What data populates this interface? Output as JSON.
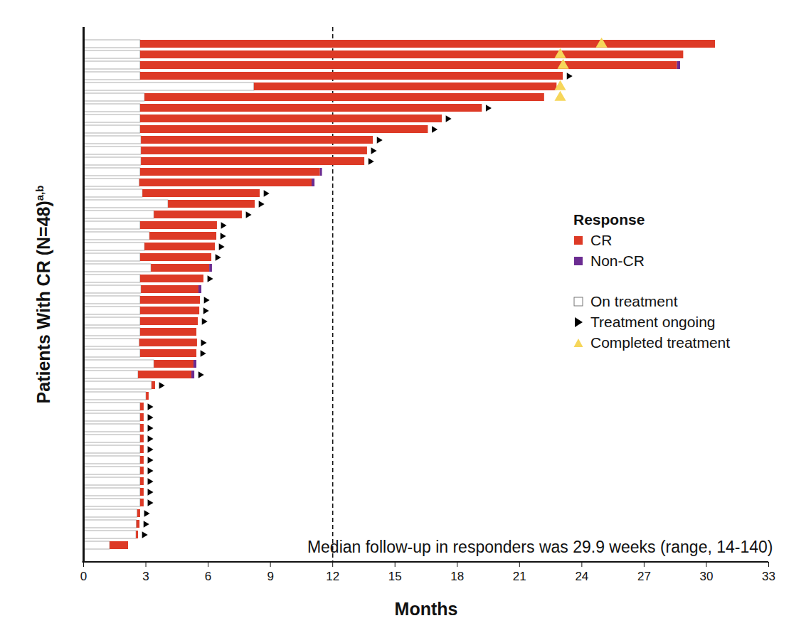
{
  "chart_data": {
    "type": "bar",
    "orientation": "horizontal",
    "stacked": true,
    "ylabel": "Patients With CR (N=48)",
    "ylabel_superscript": "a,b",
    "xlabel": "Months",
    "annotation": "Median follow-up in responders was 29.9 weeks (range, 14-140)",
    "categories": [
      null,
      null,
      null,
      null,
      null,
      null,
      null,
      null,
      null,
      null,
      null,
      null,
      null,
      null,
      null,
      null,
      null,
      null,
      null,
      null,
      null,
      null,
      null,
      null,
      null,
      null,
      null,
      null,
      null,
      null,
      null,
      null,
      null,
      null,
      null,
      null,
      null,
      null,
      null,
      null,
      null,
      null,
      null,
      null,
      null,
      null,
      null,
      null
    ],
    "xlim": [
      0,
      33
    ],
    "xticks": [
      0,
      3,
      6,
      9,
      12,
      15,
      18,
      21,
      24,
      27,
      30,
      33
    ],
    "reference_x": 12,
    "tick_labels": "x",
    "legend": "right",
    "legend_title": "Response",
    "legend_groups": [
      [
        "CR",
        "Non-CR"
      ],
      [
        "On treatment",
        "Treatment ongoing",
        "Completed treatment"
      ]
    ],
    "series": [
      {
        "name": "On treatment",
        "type": "bar",
        "color": "#ffffff",
        "values": [
          2.74,
          2.74,
          2.74,
          2.74,
          8.22,
          2.95,
          2.74,
          2.74,
          2.74,
          2.78,
          2.78,
          2.78,
          2.74,
          2.7,
          2.85,
          4.08,
          3.4,
          2.74,
          3.19,
          2.95,
          2.74,
          3.26,
          2.74,
          2.78,
          2.74,
          2.74,
          2.74,
          2.74,
          2.7,
          2.74,
          3.4,
          2.64,
          3.29,
          3.02,
          2.74,
          2.74,
          2.74,
          2.74,
          2.74,
          2.74,
          2.74,
          2.74,
          2.74,
          2.74,
          2.6,
          2.56,
          2.54,
          1.27
        ]
      },
      {
        "name": "CR",
        "type": "bar",
        "color": "#dd3a26",
        "values": [
          27.69,
          26.16,
          25.86,
          20.36,
          14.58,
          19.25,
          16.46,
          14.53,
          13.86,
          11.17,
          10.89,
          10.76,
          8.66,
          8.3,
          5.65,
          4.18,
          4.24,
          3.7,
          3.22,
          3.39,
          3.43,
          2.81,
          3.05,
          2.77,
          2.88,
          2.85,
          2.78,
          2.71,
          2.78,
          2.71,
          1.91,
          2.57,
          0.17,
          0.13,
          0.17,
          0.17,
          0.17,
          0.17,
          0.17,
          0.17,
          0.17,
          0.17,
          0.17,
          0.17,
          0.14,
          0.15,
          0.1,
          0.89
        ]
      },
      {
        "name": "Non-CR",
        "type": "bar",
        "color": "#6b2c91",
        "values": [
          null,
          null,
          0.15,
          null,
          null,
          null,
          null,
          null,
          null,
          null,
          null,
          null,
          0.1,
          0.14,
          null,
          null,
          null,
          null,
          null,
          null,
          null,
          0.13,
          null,
          0.14,
          null,
          null,
          null,
          null,
          null,
          null,
          0.14,
          0.14,
          null,
          null,
          null,
          null,
          null,
          null,
          null,
          null,
          null,
          null,
          null,
          null,
          null,
          null,
          null,
          null
        ]
      },
      {
        "name": "Treatment ongoing",
        "type": "scatter",
        "marker": "triangle-right",
        "color": "#000000",
        "values": [
          null,
          null,
          null,
          23.4,
          null,
          null,
          19.5,
          17.57,
          16.9,
          14.25,
          13.97,
          13.84,
          null,
          null,
          8.8,
          8.56,
          7.94,
          6.74,
          6.71,
          6.64,
          6.47,
          null,
          6.09,
          null,
          5.92,
          5.89,
          5.82,
          null,
          5.78,
          5.75,
          null,
          5.65,
          3.76,
          null,
          3.21,
          3.21,
          3.21,
          3.21,
          3.21,
          3.21,
          3.21,
          3.21,
          3.21,
          3.21,
          3.04,
          3.01,
          2.94,
          null
        ]
      },
      {
        "name": "Completed treatment",
        "type": "scatter",
        "marker": "triangle",
        "color": "#f6d65a",
        "values": [
          24.95,
          22.96,
          23.1,
          null,
          22.96,
          22.96,
          null,
          null,
          null,
          null,
          null,
          null,
          null,
          null,
          null,
          null,
          null,
          null,
          null,
          null,
          null,
          null,
          null,
          null,
          null,
          null,
          null,
          null,
          null,
          null,
          null,
          null,
          null,
          null,
          null,
          null,
          null,
          null,
          null,
          null,
          null,
          null,
          null,
          null,
          null,
          null,
          null,
          null
        ]
      }
    ]
  }
}
